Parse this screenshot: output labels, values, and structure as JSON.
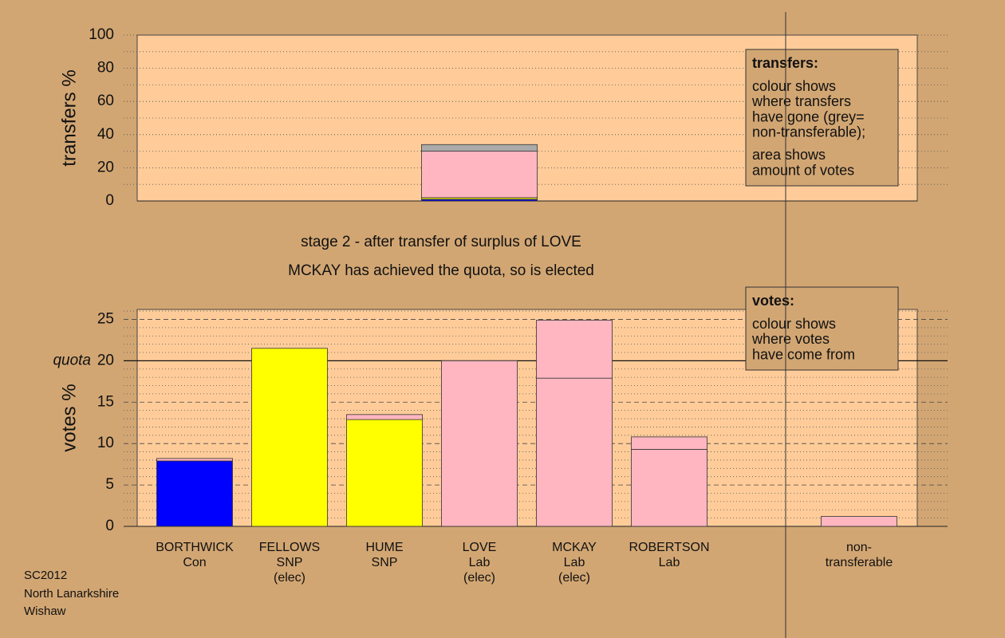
{
  "footer": [
    "SC2012",
    "North Lanarkshire",
    "Wishaw"
  ],
  "chart_data": [
    {
      "type": "stacked-bar",
      "ylabel": "transfers %",
      "ylim": [
        0,
        100
      ],
      "yticks": [
        0,
        20,
        40,
        60,
        80,
        100
      ],
      "minor_yticks": [
        10,
        30,
        50,
        70,
        90
      ],
      "categories": [
        null,
        null,
        null,
        null,
        null,
        null,
        null,
        null
      ],
      "series": [
        {
          "color": "#0000ff",
          "values": [
            null,
            null,
            null,
            1,
            null,
            null,
            null,
            null
          ]
        },
        {
          "color": "#ffff00",
          "values": [
            null,
            null,
            null,
            1,
            null,
            null,
            null,
            null
          ]
        },
        {
          "color": "#ffb6c1",
          "values": [
            null,
            null,
            null,
            28,
            null,
            null,
            null,
            null
          ]
        },
        {
          "color": "#aaaaaa",
          "values": [
            null,
            null,
            null,
            4,
            null,
            null,
            null,
            null
          ]
        }
      ],
      "note": {
        "title": "transfers:",
        "paragraphs": [
          [
            "colour shows",
            "where transfers",
            "have gone (grey=",
            "non-transferable);"
          ],
          [
            "area shows",
            "amount of votes"
          ]
        ]
      }
    },
    {
      "type": "stacked-bar",
      "subtitle": [
        "stage 2 - after transfer of surplus of LOVE",
        "MCKAY has achieved the quota, so is elected"
      ],
      "ylabel": "votes %",
      "ylim": [
        0,
        26.2
      ],
      "yticks": [
        0,
        5,
        10,
        15,
        20,
        25
      ],
      "minor_yticks": [
        1,
        2,
        3,
        4,
        6,
        7,
        8,
        9,
        11,
        12,
        13,
        14,
        16,
        17,
        18,
        19,
        21,
        22,
        23,
        24,
        26
      ],
      "quota": {
        "value": 20,
        "label": "quota"
      },
      "categories": [
        [
          "BORTHWICK",
          "Con"
        ],
        [
          "FELLOWS",
          "SNP",
          "(elec)"
        ],
        [
          "HUME",
          "SNP"
        ],
        [
          "LOVE",
          "Lab",
          "(elec)"
        ],
        [
          "MCKAY",
          "Lab",
          "(elec)"
        ],
        [
          "ROBERTSON",
          "Lab"
        ],
        null,
        [
          "non-",
          "transferable"
        ]
      ],
      "series": [
        {
          "colors": [
            "#0000ff",
            "#ffff00",
            "#ffff00",
            "#ffb6c1",
            "#ffb6c1",
            "#ffb6c1",
            null,
            null
          ],
          "values": [
            7.9,
            21.5,
            12.9,
            20,
            17.9,
            9.3,
            null,
            null
          ]
        },
        {
          "color": "#ffb6c1",
          "values": [
            0.3,
            null,
            0.6,
            null,
            7.0,
            1.5,
            null,
            1.2
          ]
        }
      ],
      "note": {
        "title": "votes:",
        "paragraphs": [
          [
            "colour shows",
            "where votes",
            "have come from"
          ]
        ]
      }
    }
  ]
}
